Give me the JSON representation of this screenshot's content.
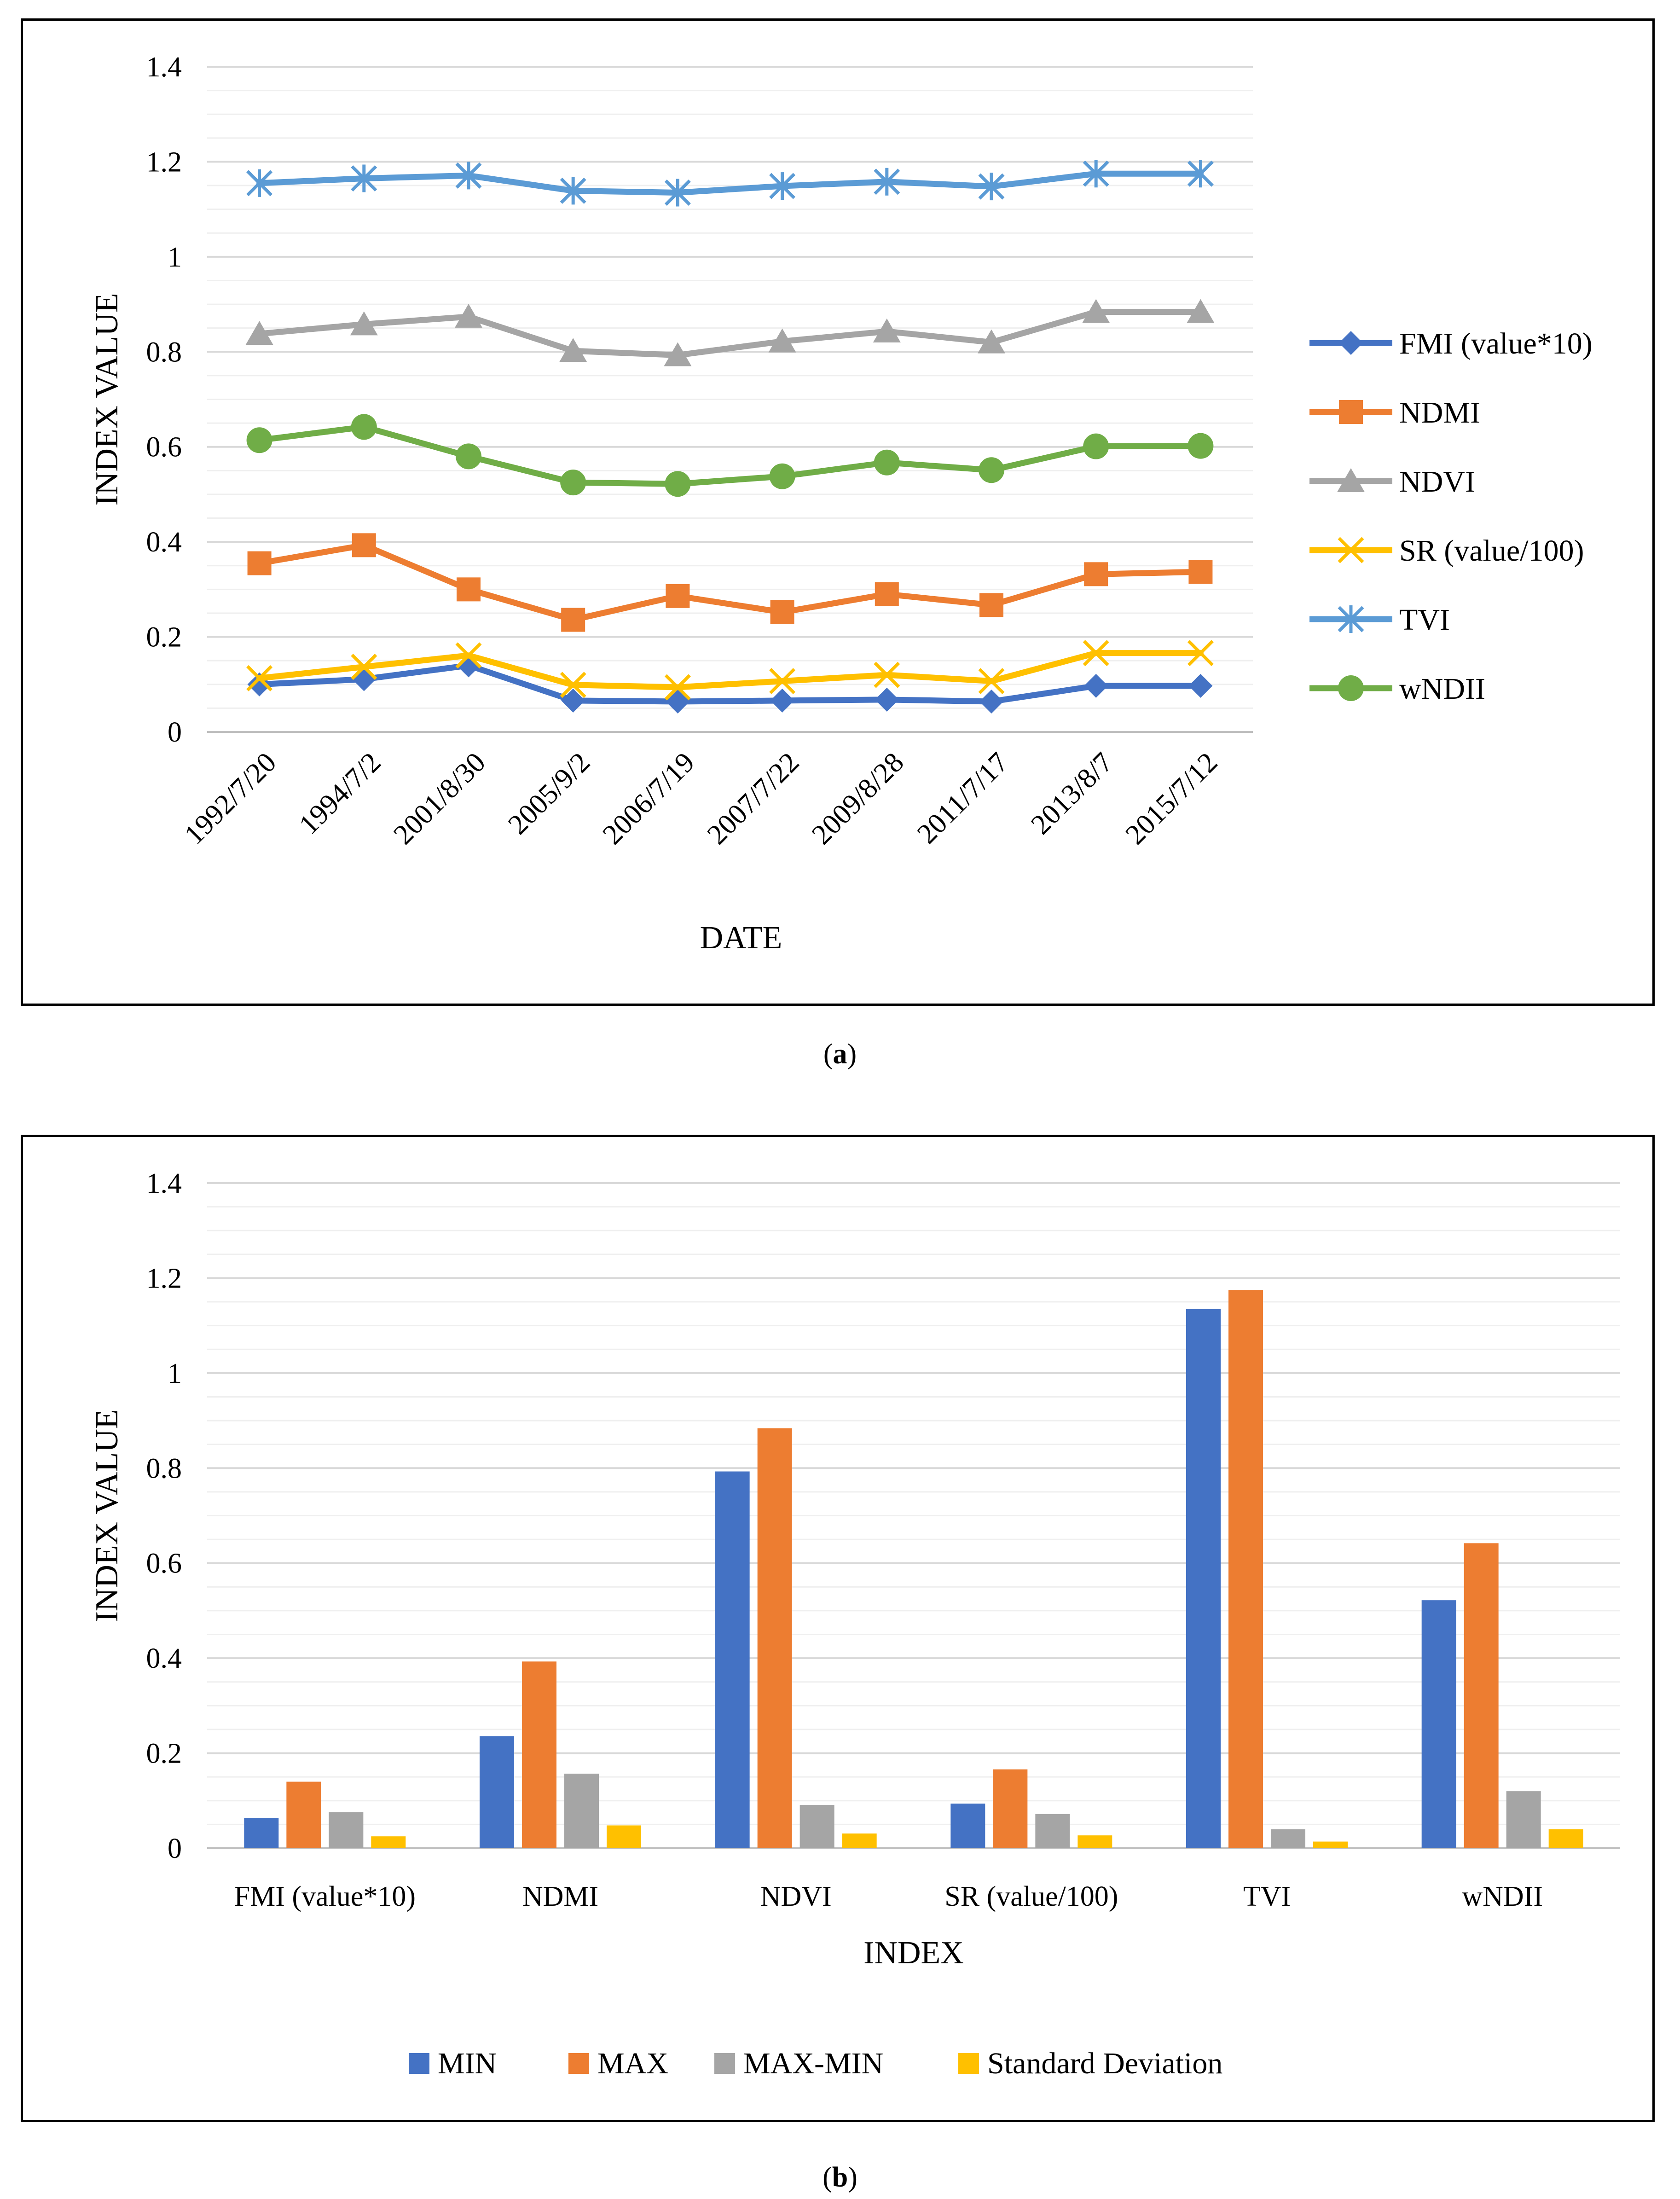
{
  "chart_data": [
    {
      "type": "line",
      "title": "",
      "xlabel": "DATE",
      "ylabel": "INDEX VALUE",
      "ylim": [
        0,
        1.4
      ],
      "yticks": [
        "0",
        "0.2",
        "0.4",
        "0.6",
        "0.8",
        "1",
        "1.2",
        "1.4"
      ],
      "grid": true,
      "legend_position": "right",
      "categories": [
        "1992/7/20",
        "1994/7/2",
        "2001/8/30",
        "2005/9/2",
        "2006/7/19",
        "2007/7/22",
        "2009/8/28",
        "2011/7/17",
        "2013/8/7",
        "2015/7/12"
      ],
      "series": [
        {
          "name": "FMI (value*10)",
          "color": "#4472C4",
          "marker": "diamond",
          "values": [
            0.1,
            0.111,
            0.14,
            0.066,
            0.064,
            0.066,
            0.068,
            0.064,
            0.097,
            0.097
          ]
        },
        {
          "name": "NDMI",
          "color": "#ED7D31",
          "marker": "square",
          "values": [
            0.355,
            0.393,
            0.3,
            0.236,
            0.286,
            0.252,
            0.29,
            0.267,
            0.332,
            0.337
          ]
        },
        {
          "name": "NDVI",
          "color": "#A5A5A5",
          "marker": "triangle",
          "values": [
            0.838,
            0.858,
            0.874,
            0.802,
            0.793,
            0.822,
            0.843,
            0.82,
            0.884,
            0.884
          ]
        },
        {
          "name": "SR (value/100)",
          "color": "#FFC000",
          "marker": "x",
          "values": [
            0.113,
            0.137,
            0.161,
            0.099,
            0.094,
            0.107,
            0.12,
            0.107,
            0.166,
            0.166
          ]
        },
        {
          "name": "TVI",
          "color": "#5B9BD5",
          "marker": "star",
          "values": [
            1.155,
            1.165,
            1.171,
            1.139,
            1.135,
            1.149,
            1.158,
            1.148,
            1.175,
            1.175
          ]
        },
        {
          "name": "wNDII",
          "color": "#70AD47",
          "marker": "circle",
          "values": [
            0.614,
            0.642,
            0.58,
            0.525,
            0.522,
            0.538,
            0.567,
            0.551,
            0.601,
            0.602
          ]
        }
      ]
    },
    {
      "type": "bar",
      "title": "",
      "xlabel": "INDEX",
      "ylabel": "INDEX VALUE",
      "ylim": [
        0,
        1.4
      ],
      "yticks": [
        "0",
        "0.2",
        "0.4",
        "0.6",
        "0.8",
        "1",
        "1.2",
        "1.4"
      ],
      "grid": true,
      "legend_position": "bottom",
      "categories": [
        "FMI (value*10)",
        "NDMI",
        "NDVI",
        "SR (value/100)",
        "TVI",
        "wNDII"
      ],
      "series": [
        {
          "name": "MIN",
          "color": "#4472C4",
          "values": [
            0.064,
            0.236,
            0.793,
            0.094,
            1.135,
            0.522
          ]
        },
        {
          "name": "MAX",
          "color": "#ED7D31",
          "values": [
            0.14,
            0.393,
            0.884,
            0.166,
            1.175,
            0.642
          ]
        },
        {
          "name": "MAX-MIN",
          "color": "#A5A5A5",
          "values": [
            0.076,
            0.157,
            0.091,
            0.072,
            0.04,
            0.12
          ]
        },
        {
          "name": "Standard Deviation",
          "color": "#FFC000",
          "values": [
            0.025,
            0.048,
            0.031,
            0.027,
            0.014,
            0.04
          ]
        }
      ]
    }
  ],
  "captions": {
    "a": {
      "open": "(",
      "letter": "a",
      "close": ")"
    },
    "b": {
      "open": "(",
      "letter": "b",
      "close": ")"
    }
  }
}
